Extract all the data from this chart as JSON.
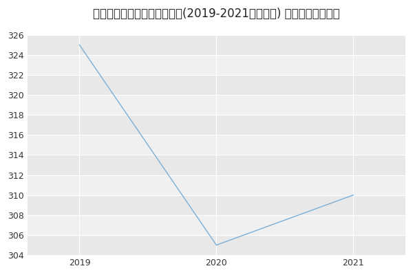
{
  "title": "同济大学地质资源与地质工程(2019-2021历年复试) 研究生录取分数线",
  "x_values": [
    2019,
    2020,
    2021
  ],
  "y_values": [
    325,
    305,
    310
  ],
  "xlim": [
    2018.62,
    2021.38
  ],
  "ylim": [
    304,
    327
  ],
  "yticks": [
    304,
    306,
    308,
    310,
    312,
    314,
    316,
    318,
    320,
    322,
    324,
    326
  ],
  "xticks": [
    2019,
    2020,
    2021
  ],
  "line_color": "#7aaed6",
  "bg_color": "#ffffff",
  "band_colors": [
    "#e8e8e8",
    "#f0f0f0"
  ],
  "grid_line_color": "#ffffff",
  "title_fontsize": 12,
  "tick_fontsize": 9
}
